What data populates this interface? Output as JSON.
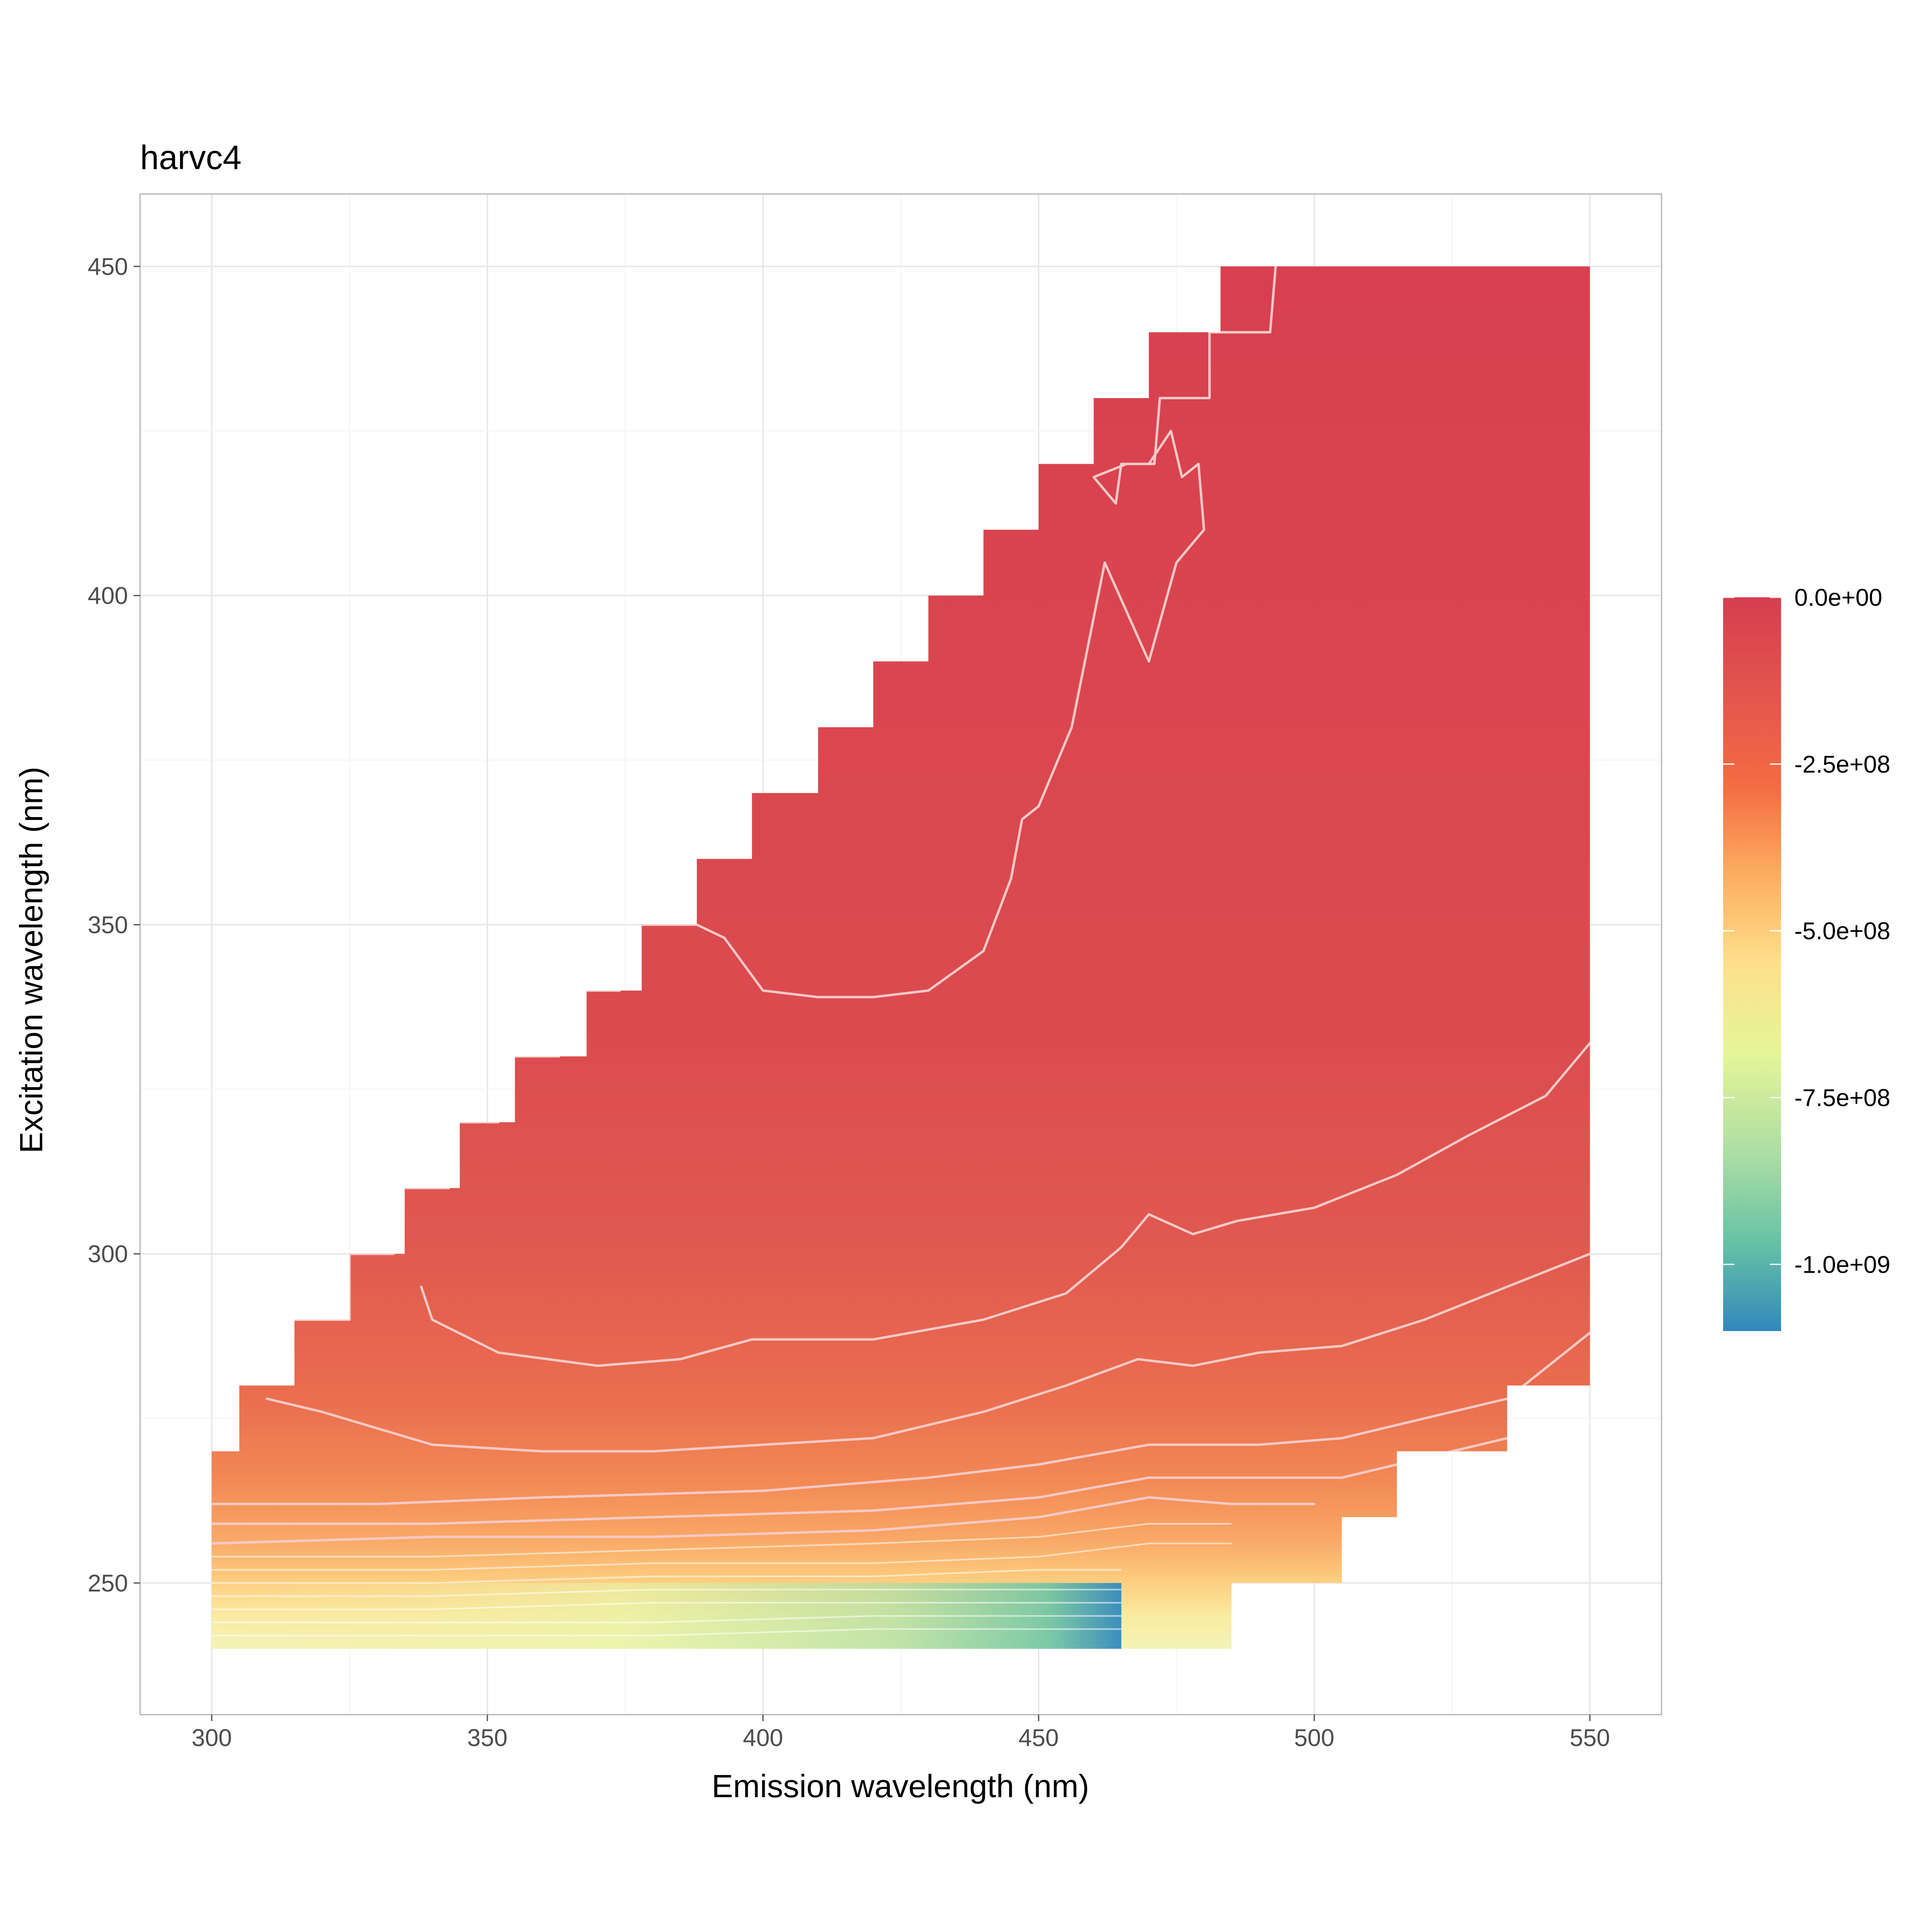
{
  "chart_data": {
    "type": "heatmap",
    "title": "harvc4",
    "xlabel": "Emission wavelength (nm)",
    "ylabel": "Excitation wavelength (nm)",
    "xlim": [
      287,
      563
    ],
    "ylim": [
      230,
      461
    ],
    "x_ticks": [
      {
        "value": 300,
        "label": "300"
      },
      {
        "value": 350,
        "label": "350"
      },
      {
        "value": 400,
        "label": "400"
      },
      {
        "value": 450,
        "label": "450"
      },
      {
        "value": 500,
        "label": "500"
      },
      {
        "value": 550,
        "label": "550"
      }
    ],
    "y_ticks": [
      {
        "value": 250,
        "label": "250"
      },
      {
        "value": 300,
        "label": "300"
      },
      {
        "value": 350,
        "label": "350"
      },
      {
        "value": 400,
        "label": "400"
      },
      {
        "value": 450,
        "label": "450"
      }
    ],
    "grid": true,
    "data_region": {
      "em_range": [
        300,
        550
      ],
      "ex_range": [
        240,
        450
      ],
      "staircase_upper_boundary": [
        {
          "em_start": 300,
          "ex_max": 270
        },
        {
          "em_start": 305,
          "ex_max": 280
        },
        {
          "em_start": 315,
          "ex_max": 290
        },
        {
          "em_start": 325,
          "ex_max": 300
        },
        {
          "em_start": 335,
          "ex_max": 310
        },
        {
          "em_start": 345,
          "ex_max": 320
        },
        {
          "em_start": 355,
          "ex_max": 330
        },
        {
          "em_start": 368,
          "ex_max": 340
        },
        {
          "em_start": 378,
          "ex_max": 350
        },
        {
          "em_start": 388,
          "ex_max": 360
        },
        {
          "em_start": 398,
          "ex_max": 370
        },
        {
          "em_start": 410,
          "ex_max": 380
        },
        {
          "em_start": 420,
          "ex_max": 390
        },
        {
          "em_start": 430,
          "ex_max": 400
        },
        {
          "em_start": 440,
          "ex_max": 410
        },
        {
          "em_start": 450,
          "ex_max": 420
        },
        {
          "em_start": 460,
          "ex_max": 430
        },
        {
          "em_start": 470,
          "ex_max": 440
        },
        {
          "em_start": 483,
          "ex_max": 450
        }
      ],
      "staircase_lower_boundary": [
        {
          "em_end": 485,
          "ex_min": 240
        },
        {
          "em_end": 505,
          "ex_min": 250
        },
        {
          "em_end": 515,
          "ex_min": 260
        },
        {
          "em_end": 535,
          "ex_min": 270
        },
        {
          "em_end": 550,
          "ex_min": 280
        }
      ],
      "minimum_location": {
        "em": 465,
        "ex": 240,
        "value": -1100000000.0
      }
    },
    "colorbar": {
      "scale": "Spectral",
      "range": [
        -1100000000.0,
        0.0
      ],
      "ticks": [
        {
          "value": 0.0,
          "label": "0.0e+00"
        },
        {
          "value": -250000000.0,
          "label": "-2.5e+08"
        },
        {
          "value": -500000000.0,
          "label": "-5.0e+08"
        },
        {
          "value": -750000000.0,
          "label": "-7.5e+08"
        },
        {
          "value": -1000000000.0,
          "label": "-1.0e+09"
        }
      ],
      "colors": [
        "#d53e4f",
        "#f46d43",
        "#fdae61",
        "#fee08b",
        "#e6f598",
        "#abdda4",
        "#66c2a5",
        "#3288bd"
      ]
    },
    "contour_levels_sample": [
      -20000000.0,
      -40000000.0,
      -60000000.0,
      -80000000.0,
      -100000000.0,
      -120000000.0,
      -140000000.0,
      -160000000.0,
      -180000000.0,
      -200000000.0
    ]
  }
}
